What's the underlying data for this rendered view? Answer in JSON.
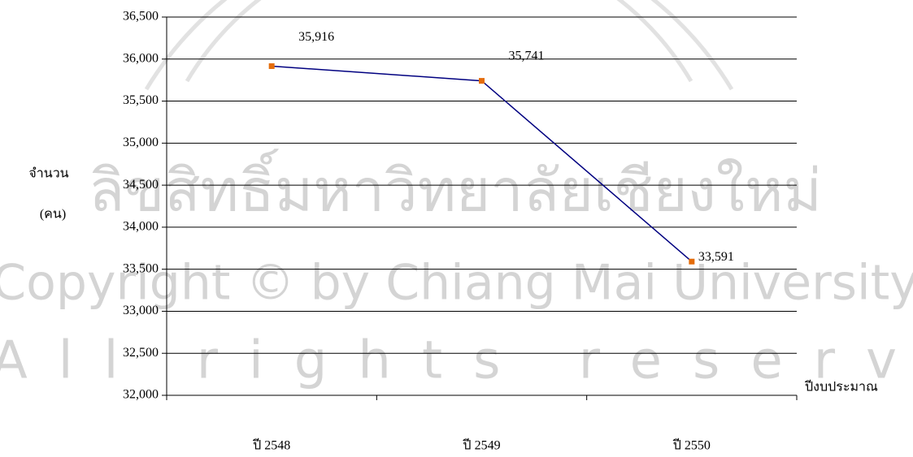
{
  "chart_data": {
    "type": "line",
    "categories": [
      "ปี 2548",
      "ปี 2549",
      "ปี 2550"
    ],
    "series": [
      {
        "name": "จำนวน",
        "color": "#000080",
        "marker_color": "#e46c0a",
        "values": [
          35916,
          35741,
          33591
        ],
        "value_labels": [
          "35,916",
          "35,741",
          "33,591"
        ]
      }
    ],
    "ylabel": [
      "จำนวน",
      "(คน)"
    ],
    "xlabel": "ปีงบประมาณ",
    "ylim": [
      32000,
      36500
    ],
    "yticks": [
      {
        "value": 32000,
        "label": "32,000"
      },
      {
        "value": 32500,
        "label": "32,500"
      },
      {
        "value": 33000,
        "label": "33,000"
      },
      {
        "value": 33500,
        "label": "33,500"
      },
      {
        "value": 34000,
        "label": "34,000"
      },
      {
        "value": 34500,
        "label": "34,500"
      },
      {
        "value": 35000,
        "label": "35,000"
      },
      {
        "value": 35500,
        "label": "35,500"
      },
      {
        "value": 36000,
        "label": "36,000"
      },
      {
        "value": 36500,
        "label": "36,500"
      }
    ],
    "grid": true,
    "watermark": [
      "ลิขสิทธิ์มหาวิทยาลัยเชียงใหม่",
      "Copyright © by Chiang Mai University",
      "All rights reserved"
    ]
  }
}
